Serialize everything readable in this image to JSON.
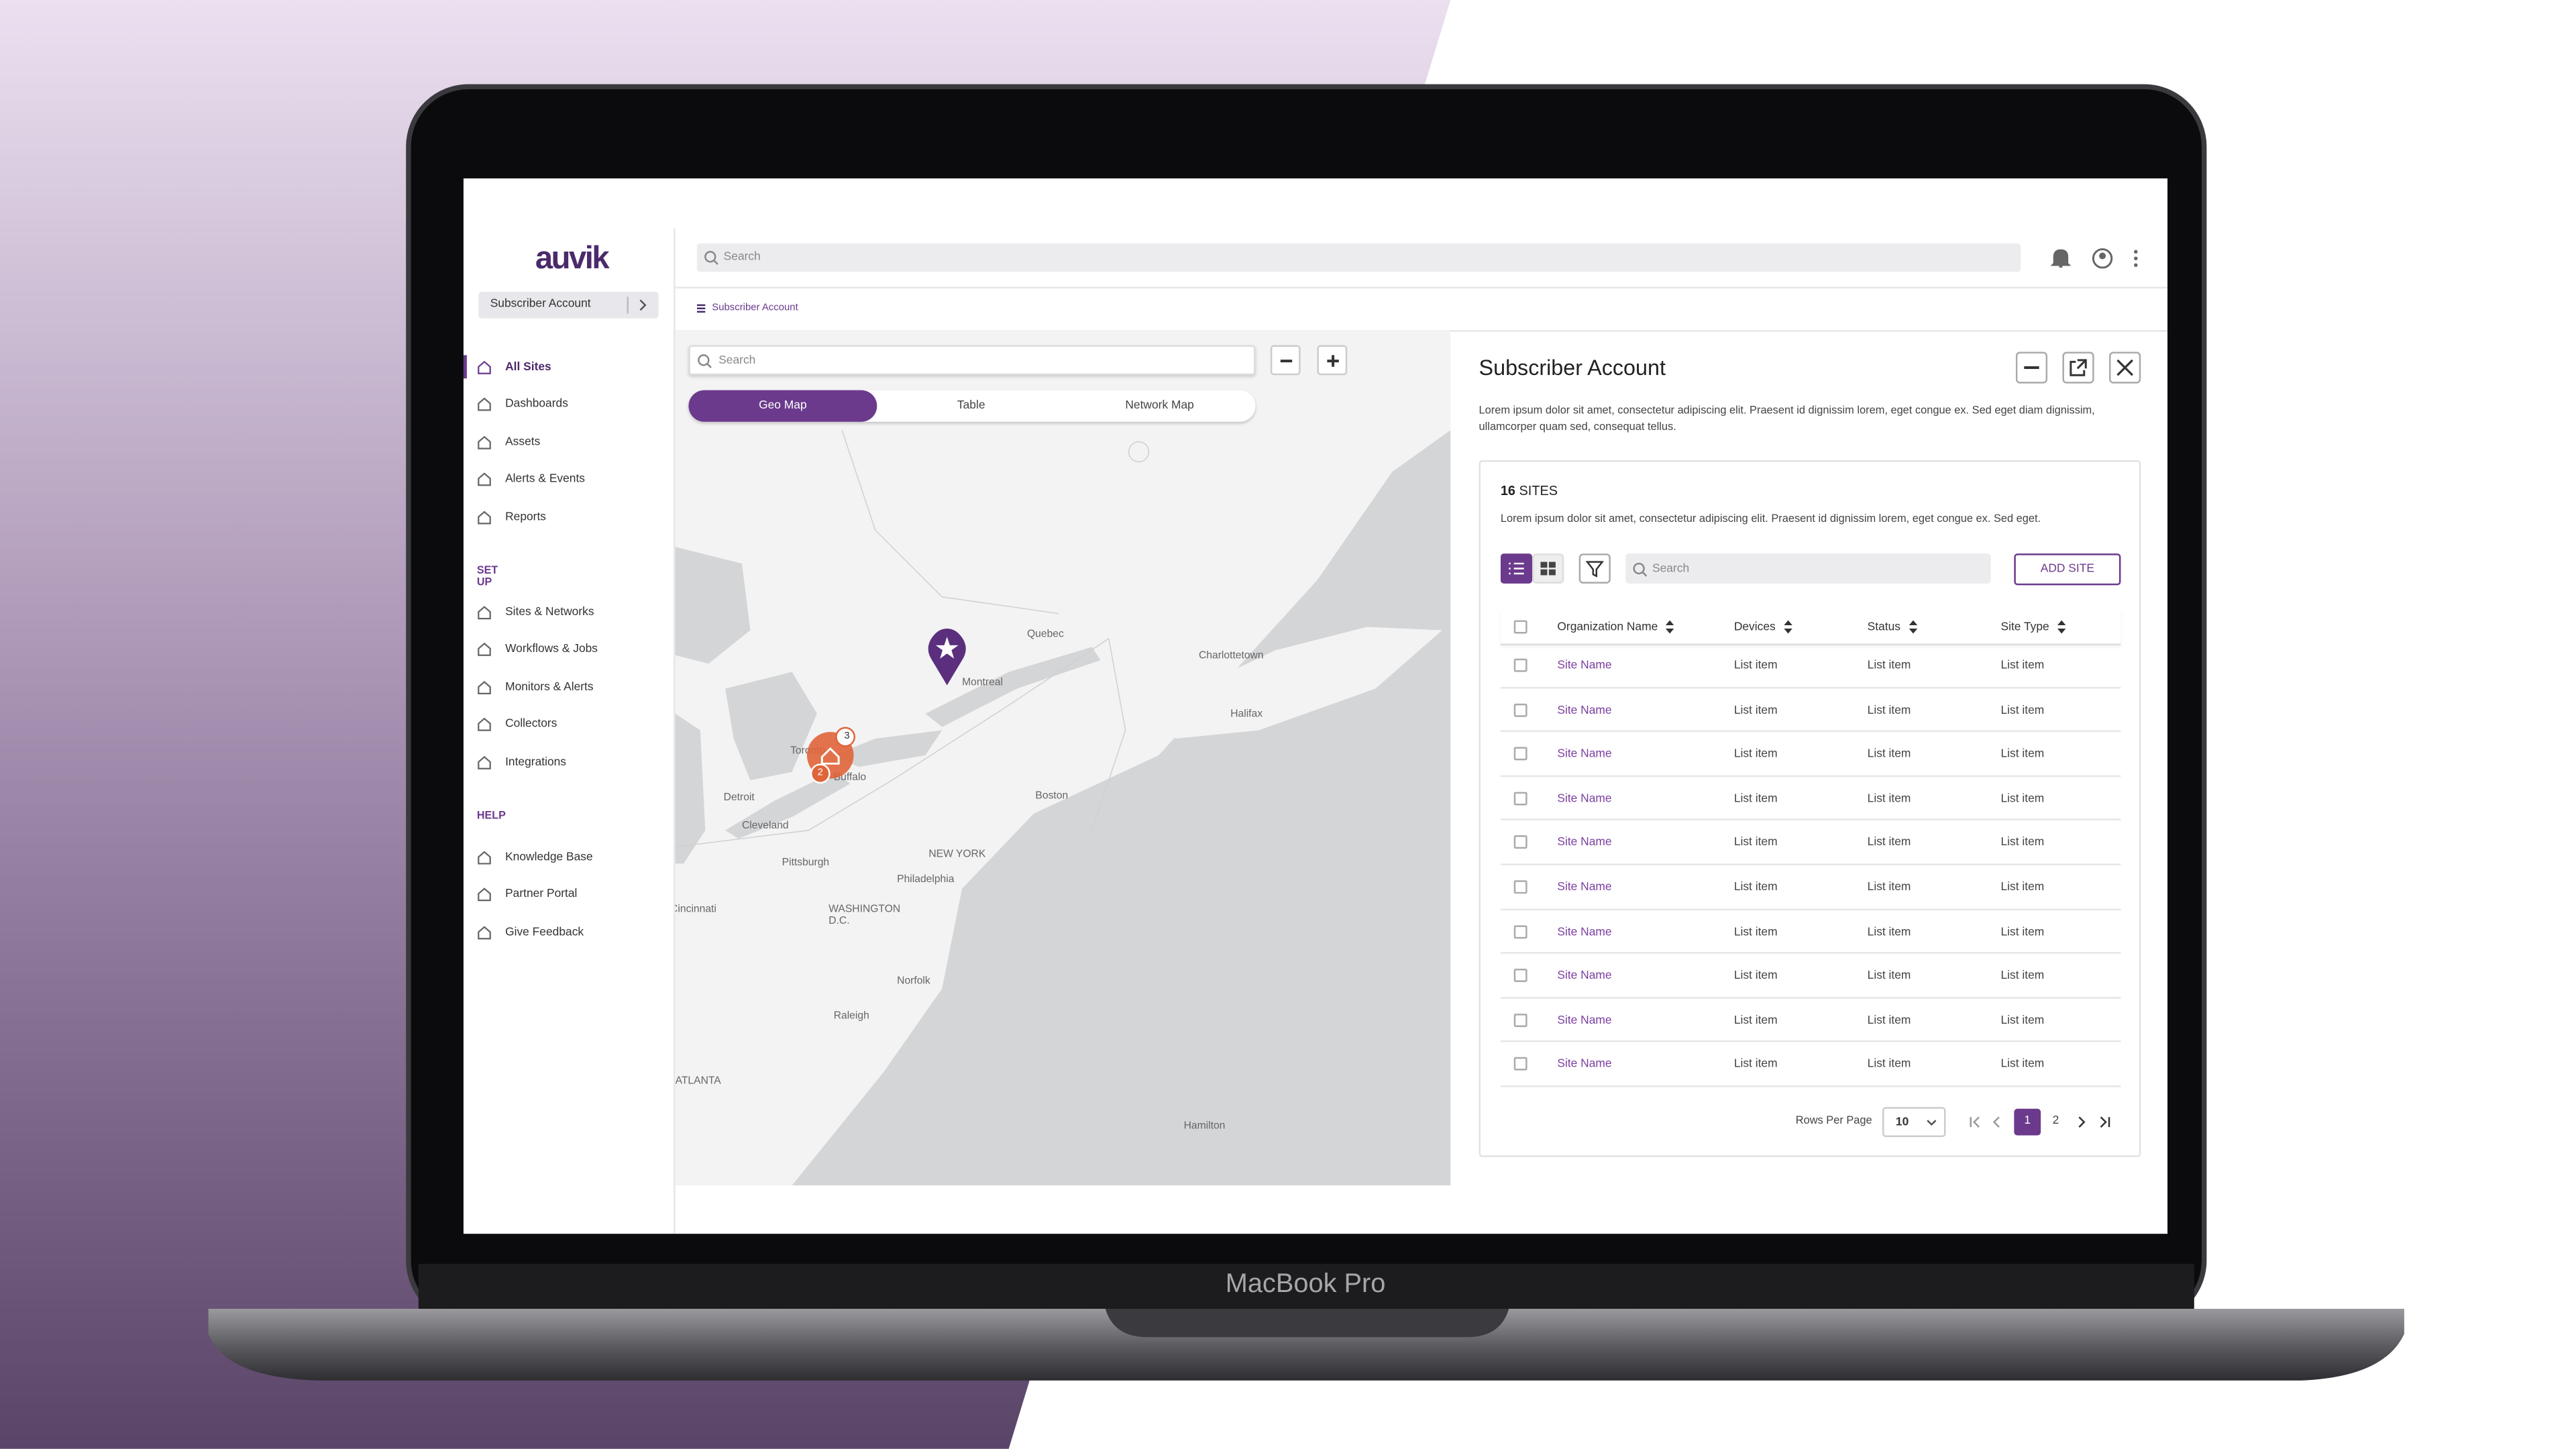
{
  "device": {
    "label": "MacBook Pro"
  },
  "app": {
    "logo": "auvik",
    "account_selector": "Subscriber Account",
    "nav_main": [
      "All Sites",
      "Dashboards",
      "Assets",
      "Alerts & Events",
      "Reports"
    ],
    "setup_heading": "SET UP",
    "nav_setup": [
      "Sites & Networks",
      "Workflows & Jobs",
      "Monitors & Alerts",
      "Collectors",
      "Integrations"
    ],
    "help_heading": "HELP",
    "nav_help": [
      "Knowledge Base",
      "Partner Portal",
      "Give Feedback"
    ],
    "top_search": "Search",
    "breadcrumb": "Subscriber Account",
    "map": {
      "search": "Search",
      "tabs": [
        "Geo Map",
        "Table",
        "Network Map"
      ],
      "cities": [
        "Quebec",
        "Montreal",
        "Charlottetown",
        "Halifax",
        "Toronto",
        "Buffalo",
        "Detroit",
        "Cleveland",
        "Boston",
        "NEW YORK",
        "Pittsburgh",
        "Philadelphia",
        "WASHINGTON D.C.",
        "Cincinnati",
        "Norfolk",
        "Raleigh",
        "ATLANTA",
        "Hamilton"
      ],
      "cluster_counts": [
        "3",
        "2"
      ]
    },
    "panel": {
      "title": "Subscriber Account",
      "description": "Lorem ipsum dolor sit amet, consectetur adipiscing elit. Praesent id dignissim lorem, eget congue ex. Sed eget diam dignissim, ullamcorper quam sed, consequat tellus.",
      "sites_count": "16",
      "sites_label": "SITES",
      "sites_description": "Lorem ipsum dolor sit amet, consectetur adipiscing elit. Praesent id dignissim lorem, eget congue ex. Sed eget.",
      "search": "Search",
      "add_button": "ADD SITE",
      "columns": [
        "Organization Name",
        "Devices",
        "Status",
        "Site Type"
      ],
      "rows": [
        [
          "Site Name",
          "List item",
          "List item",
          "List item"
        ],
        [
          "Site Name",
          "List item",
          "List item",
          "List item"
        ],
        [
          "Site Name",
          "List item",
          "List item",
          "List item"
        ],
        [
          "Site Name",
          "List item",
          "List item",
          "List item"
        ],
        [
          "Site Name",
          "List item",
          "List item",
          "List item"
        ],
        [
          "Site Name",
          "List item",
          "List item",
          "List item"
        ],
        [
          "Site Name",
          "List item",
          "List item",
          "List item"
        ],
        [
          "Site Name",
          "List item",
          "List item",
          "List item"
        ],
        [
          "Site Name",
          "List item",
          "List item",
          "List item"
        ],
        [
          "Site Name",
          "List item",
          "List item",
          "List item"
        ]
      ],
      "rows_per_page_label": "Rows Per Page",
      "rows_per_page": "10",
      "pages": [
        "1",
        "2"
      ]
    }
  }
}
